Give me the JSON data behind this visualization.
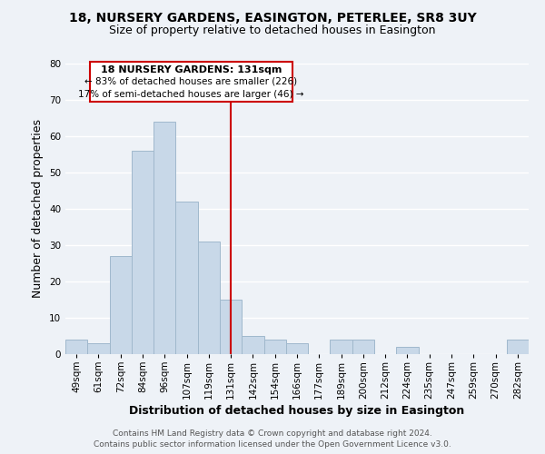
{
  "title": "18, NURSERY GARDENS, EASINGTON, PETERLEE, SR8 3UY",
  "subtitle": "Size of property relative to detached houses in Easington",
  "xlabel": "Distribution of detached houses by size in Easington",
  "ylabel": "Number of detached properties",
  "categories": [
    "49sqm",
    "61sqm",
    "72sqm",
    "84sqm",
    "96sqm",
    "107sqm",
    "119sqm",
    "131sqm",
    "142sqm",
    "154sqm",
    "166sqm",
    "177sqm",
    "189sqm",
    "200sqm",
    "212sqm",
    "224sqm",
    "235sqm",
    "247sqm",
    "259sqm",
    "270sqm",
    "282sqm"
  ],
  "values": [
    4,
    3,
    27,
    56,
    64,
    42,
    31,
    15,
    5,
    4,
    3,
    0,
    4,
    4,
    0,
    2,
    0,
    0,
    0,
    0,
    4
  ],
  "bar_color": "#c8d8e8",
  "bar_edge_color": "#a0b8cc",
  "highlight_index": 7,
  "highlight_line_color": "#cc0000",
  "ylim": [
    0,
    80
  ],
  "yticks": [
    0,
    10,
    20,
    30,
    40,
    50,
    60,
    70,
    80
  ],
  "annotation_title": "18 NURSERY GARDENS: 131sqm",
  "annotation_line1": "← 83% of detached houses are smaller (226)",
  "annotation_line2": "17% of semi-detached houses are larger (46) →",
  "annotation_box_color": "#ffffff",
  "annotation_box_edge_color": "#cc0000",
  "footer1": "Contains HM Land Registry data © Crown copyright and database right 2024.",
  "footer2": "Contains public sector information licensed under the Open Government Licence v3.0.",
  "background_color": "#eef2f7",
  "grid_color": "#ffffff",
  "title_fontsize": 10,
  "subtitle_fontsize": 9,
  "axis_label_fontsize": 9,
  "tick_fontsize": 7.5,
  "footer_fontsize": 6.5,
  "annotation_title_fontsize": 8,
  "annotation_text_fontsize": 7.5
}
